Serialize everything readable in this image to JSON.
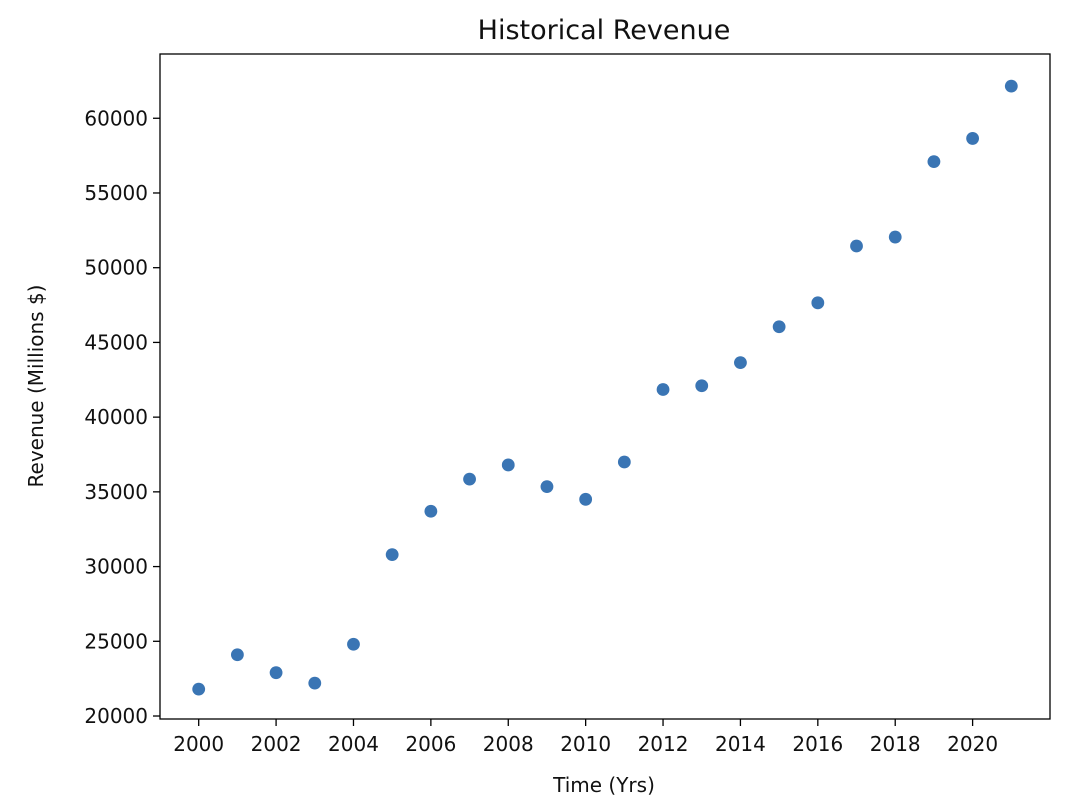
{
  "chart_data": {
    "type": "scatter",
    "title": "Historical Revenue",
    "xlabel": "Time (Yrs)",
    "ylabel": "Revenue (Millions $)",
    "xlim": [
      1999,
      2022
    ],
    "ylim": [
      19800,
      64300
    ],
    "xticks": [
      2000,
      2002,
      2004,
      2006,
      2008,
      2010,
      2012,
      2014,
      2016,
      2018,
      2020
    ],
    "yticks": [
      20000,
      25000,
      30000,
      35000,
      40000,
      45000,
      50000,
      55000,
      60000
    ],
    "grid": false,
    "color": "#3a75b4",
    "series": [
      {
        "x": [
          2000,
          2001,
          2002,
          2003,
          2004,
          2005,
          2006,
          2007,
          2008,
          2009,
          2010,
          2011,
          2012,
          2013,
          2014,
          2015,
          2016,
          2017,
          2018,
          2019,
          2020,
          2021
        ],
        "y": [
          21800,
          24100,
          22900,
          22200,
          24800,
          30800,
          33700,
          35850,
          36800,
          35350,
          34500,
          37000,
          41850,
          42100,
          43650,
          46050,
          47650,
          51450,
          52050,
          57100,
          58650,
          62150
        ]
      }
    ]
  }
}
